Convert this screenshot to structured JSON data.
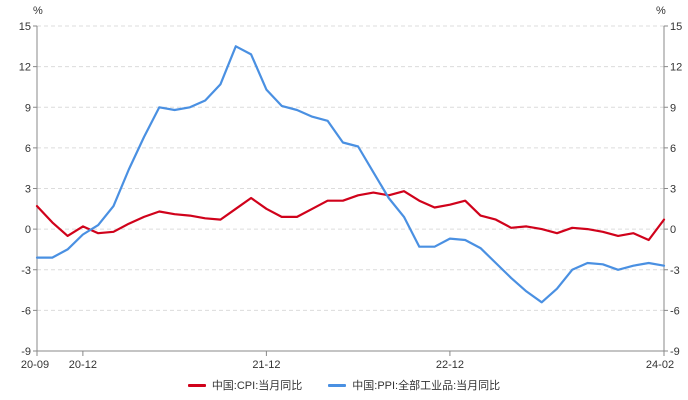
{
  "chart_data": {
    "type": "line",
    "unit_left": "%",
    "unit_right": "%",
    "y_ticks": [
      15,
      12,
      9,
      6,
      3,
      0,
      -3,
      -6,
      -9
    ],
    "ylim": [
      -9,
      15
    ],
    "x_tick_labels": [
      "20-09",
      "20-12",
      "21-12",
      "22-12",
      "24-02"
    ],
    "grid": true,
    "legend_position": "bottom",
    "categories": [
      "2020-09",
      "2020-10",
      "2020-11",
      "2020-12",
      "2021-01",
      "2021-02",
      "2021-03",
      "2021-04",
      "2021-05",
      "2021-06",
      "2021-07",
      "2021-08",
      "2021-09",
      "2021-10",
      "2021-11",
      "2021-12",
      "2022-01",
      "2022-02",
      "2022-03",
      "2022-04",
      "2022-05",
      "2022-06",
      "2022-07",
      "2022-08",
      "2022-09",
      "2022-10",
      "2022-11",
      "2022-12",
      "2023-01",
      "2023-02",
      "2023-03",
      "2023-04",
      "2023-05",
      "2023-06",
      "2023-07",
      "2023-08",
      "2023-09",
      "2023-10",
      "2023-11",
      "2023-12",
      "2024-01",
      "2024-02"
    ],
    "series": [
      {
        "name": "中国:CPI:当月同比",
        "color": "#d0021b",
        "values": [
          1.7,
          0.5,
          -0.5,
          0.2,
          -0.3,
          -0.2,
          0.4,
          0.9,
          1.3,
          1.1,
          1.0,
          0.8,
          0.7,
          1.5,
          2.3,
          1.5,
          0.9,
          0.9,
          1.5,
          2.1,
          2.1,
          2.5,
          2.7,
          2.5,
          2.8,
          2.1,
          1.6,
          1.8,
          2.1,
          1.0,
          0.7,
          0.1,
          0.2,
          0.0,
          -0.3,
          0.1,
          0.0,
          -0.2,
          -0.5,
          -0.3,
          -0.8,
          0.7
        ]
      },
      {
        "name": "中国:PPI:全部工业品:当月同比",
        "color": "#4a90e2",
        "values": [
          -2.1,
          -2.1,
          -1.5,
          -0.4,
          0.3,
          1.7,
          4.4,
          6.8,
          9.0,
          8.8,
          9.0,
          9.5,
          10.7,
          13.5,
          12.9,
          10.3,
          9.1,
          8.8,
          8.3,
          8.0,
          6.4,
          6.1,
          4.2,
          2.3,
          0.9,
          -1.3,
          -1.3,
          -0.7,
          -0.8,
          -1.4,
          -2.5,
          -3.6,
          -4.6,
          -5.4,
          -4.4,
          -3.0,
          -2.5,
          -2.6,
          -3.0,
          -2.7,
          -2.5,
          -2.7
        ]
      }
    ]
  }
}
